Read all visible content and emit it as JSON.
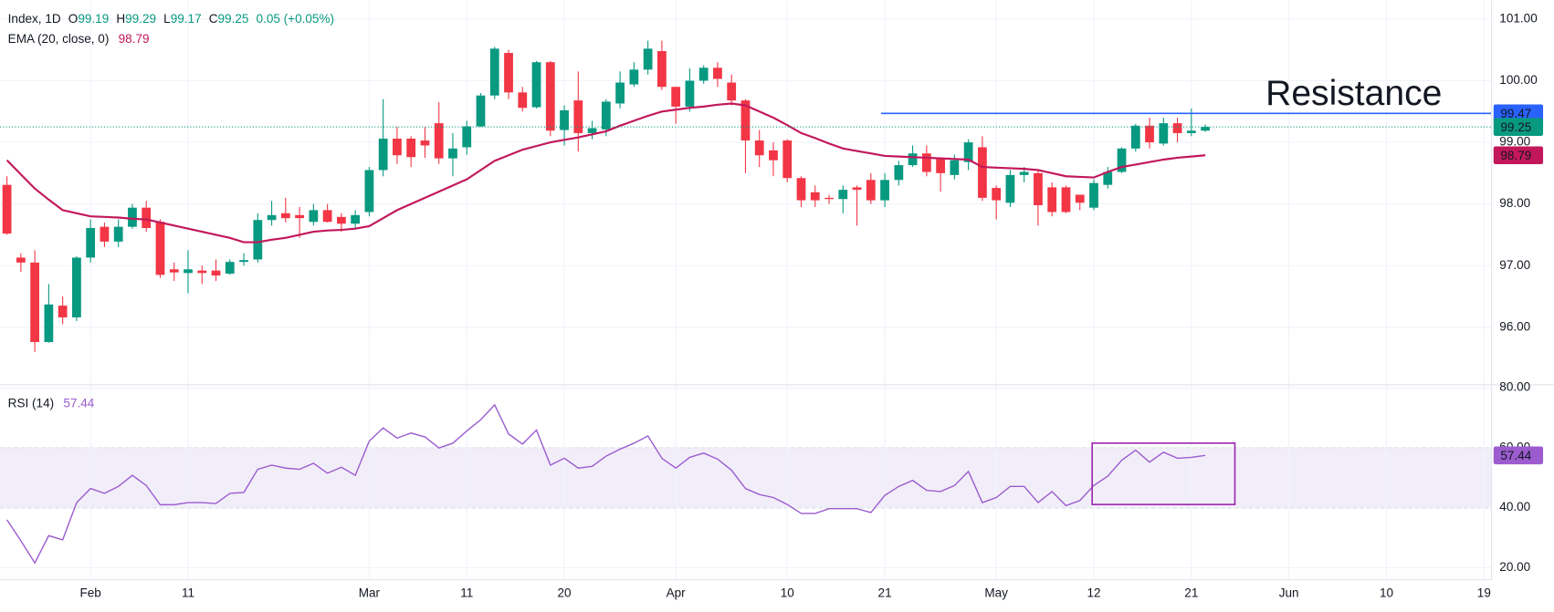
{
  "chart_data": [
    {
      "type": "candlestick",
      "title": "Index, 1D",
      "ohlc_prefixes": [
        "O",
        "H",
        "L",
        "C"
      ],
      "change_label": "0.05 (+0.05%)",
      "up_color": "#089981",
      "down_color": "#f23645",
      "ylim": [
        95.1,
        101.3
      ],
      "yticks": [
        {
          "value": 96,
          "label": "96.00"
        },
        {
          "value": 97,
          "label": "97.00"
        },
        {
          "value": 98,
          "label": "98.00"
        },
        {
          "value": 99,
          "label": "99.00"
        },
        {
          "value": 100,
          "label": "100.00"
        },
        {
          "value": 101,
          "label": "101.00"
        }
      ],
      "open": [
        98.31,
        97.13,
        97.05,
        95.76,
        96.35,
        96.16,
        97.13,
        97.63,
        97.39,
        97.63,
        97.94,
        97.71,
        96.94,
        96.88,
        96.92,
        96.92,
        96.87,
        97.06,
        97.1,
        97.74,
        97.85,
        97.82,
        97.71,
        97.9,
        97.79,
        97.68,
        97.87,
        98.55,
        99.06,
        99.06,
        99.03,
        99.31,
        98.74,
        98.92,
        99.26,
        99.76,
        100.45,
        99.81,
        99.57,
        100.3,
        99.2,
        99.68,
        99.15,
        99.21,
        99.63,
        99.94,
        100.18,
        100.48,
        99.9,
        99.58,
        100.0,
        100.21,
        99.97,
        99.68,
        99.03,
        98.87,
        99.03,
        98.42,
        98.19,
        98.1,
        98.08,
        98.27,
        98.39,
        98.06,
        98.39,
        98.63,
        98.82,
        98.74,
        98.47,
        98.68,
        98.92,
        98.26,
        98.02,
        98.47,
        98.5,
        98.27,
        98.27,
        98.15,
        97.94,
        98.31,
        98.52,
        98.9,
        99.27,
        98.98,
        99.31,
        99.15,
        99.19,
        null,
        null,
        null,
        null,
        null,
        null,
        null,
        null,
        null,
        null,
        null,
        null,
        null,
        null,
        null,
        null,
        null,
        null,
        null,
        null
      ],
      "high": [
        98.45,
        97.2,
        97.25,
        96.7,
        96.5,
        97.15,
        97.75,
        97.7,
        97.75,
        98.0,
        98.05,
        97.75,
        97.05,
        97.25,
        97.0,
        97.1,
        97.1,
        97.2,
        97.85,
        98.05,
        98.1,
        97.95,
        98.0,
        98.0,
        97.85,
        97.9,
        98.6,
        99.7,
        99.25,
        99.1,
        99.25,
        99.65,
        99.15,
        99.35,
        99.8,
        100.55,
        100.5,
        99.9,
        100.32,
        100.32,
        99.6,
        100.15,
        99.35,
        99.7,
        100.15,
        100.3,
        100.65,
        100.65,
        99.9,
        100.2,
        100.25,
        100.3,
        100.1,
        99.7,
        99.2,
        99.0,
        99.05,
        98.45,
        98.3,
        98.15,
        98.3,
        98.3,
        98.5,
        98.5,
        98.7,
        98.95,
        98.95,
        98.75,
        98.8,
        99.05,
        99.1,
        98.3,
        98.55,
        98.6,
        98.55,
        98.35,
        98.3,
        98.15,
        98.4,
        98.6,
        98.92,
        99.3,
        99.4,
        99.4,
        99.4,
        99.55,
        99.29,
        null,
        null,
        null,
        null,
        null,
        null,
        null,
        null,
        null,
        null,
        null,
        null,
        null,
        null,
        null,
        null,
        null,
        null,
        null,
        null
      ],
      "low": [
        97.5,
        96.9,
        95.6,
        95.75,
        96.05,
        96.1,
        97.05,
        97.3,
        97.3,
        97.6,
        97.55,
        96.8,
        96.75,
        96.55,
        96.7,
        96.75,
        96.85,
        97.0,
        97.05,
        97.65,
        97.7,
        97.45,
        97.65,
        97.7,
        97.55,
        97.6,
        97.8,
        98.45,
        98.65,
        98.6,
        98.75,
        98.65,
        98.45,
        98.8,
        99.25,
        99.7,
        99.7,
        99.5,
        99.55,
        99.1,
        98.95,
        98.85,
        99.05,
        99.1,
        99.55,
        99.9,
        100.1,
        99.85,
        99.3,
        99.5,
        99.95,
        99.9,
        99.6,
        98.5,
        98.6,
        98.45,
        98.35,
        97.95,
        97.95,
        98.0,
        97.85,
        97.65,
        98.0,
        97.95,
        98.3,
        98.6,
        98.45,
        98.2,
        98.4,
        98.55,
        98.05,
        97.75,
        97.95,
        98.35,
        97.65,
        97.8,
        97.85,
        97.9,
        97.9,
        98.25,
        98.5,
        98.85,
        98.9,
        98.95,
        99.0,
        99.1,
        99.17,
        null,
        null,
        null,
        null,
        null,
        null,
        null,
        null,
        null,
        null,
        null,
        null,
        null,
        null,
        null,
        null,
        null,
        null,
        null,
        null
      ],
      "close": [
        97.52,
        97.05,
        95.76,
        96.37,
        96.16,
        97.13,
        97.61,
        97.39,
        97.63,
        97.94,
        97.61,
        96.85,
        96.89,
        96.94,
        96.88,
        96.84,
        97.06,
        97.09,
        97.74,
        97.82,
        97.77,
        97.77,
        97.9,
        97.71,
        97.68,
        97.82,
        98.55,
        99.06,
        98.79,
        98.76,
        98.95,
        98.74,
        98.9,
        99.26,
        99.76,
        100.52,
        99.81,
        99.56,
        100.3,
        99.19,
        99.52,
        99.15,
        99.23,
        99.66,
        99.97,
        100.18,
        100.52,
        99.9,
        99.58,
        100.0,
        100.21,
        100.03,
        99.68,
        99.03,
        98.79,
        98.71,
        98.42,
        98.06,
        98.06,
        98.08,
        98.23,
        98.23,
        98.06,
        98.39,
        98.63,
        98.82,
        98.52,
        98.5,
        98.71,
        99.0,
        98.1,
        98.06,
        98.47,
        98.52,
        97.98,
        97.87,
        97.87,
        98.02,
        98.34,
        98.52,
        98.9,
        99.27,
        99.0,
        99.31,
        99.15,
        99.19,
        99.25,
        null,
        null,
        null,
        null,
        null,
        null,
        null,
        null,
        null,
        null,
        null,
        null,
        null,
        null,
        null,
        null,
        null,
        null,
        null,
        null
      ],
      "overlays": [
        {
          "name": "EMA (20, close, 0)",
          "color": "#c2185b",
          "values": [
            98.71,
            98.48,
            98.25,
            98.07,
            97.9,
            97.85,
            97.8,
            97.79,
            97.78,
            97.76,
            97.75,
            97.7,
            97.65,
            97.6,
            97.55,
            97.5,
            97.45,
            97.38,
            97.38,
            97.42,
            97.45,
            97.5,
            97.55,
            97.57,
            97.58,
            97.6,
            97.64,
            97.77,
            97.9,
            98.0,
            98.1,
            98.2,
            98.3,
            98.4,
            98.55,
            98.7,
            98.79,
            98.88,
            98.94,
            99.0,
            99.04,
            99.08,
            99.13,
            99.18,
            99.27,
            99.35,
            99.43,
            99.5,
            99.53,
            99.56,
            99.58,
            99.61,
            99.63,
            99.6,
            99.5,
            99.4,
            99.28,
            99.15,
            99.07,
            98.98,
            98.9,
            98.86,
            98.82,
            98.78,
            98.77,
            98.76,
            98.75,
            98.74,
            98.73,
            98.72,
            98.6,
            98.59,
            98.58,
            98.57,
            98.55,
            98.5,
            98.45,
            98.44,
            98.43,
            98.52,
            98.6,
            98.64,
            98.68,
            98.72,
            98.75,
            98.77,
            98.79,
            null,
            null,
            null,
            null,
            null,
            null,
            null,
            null,
            null,
            null,
            null,
            null,
            null,
            null,
            null,
            null,
            null,
            null,
            null,
            null
          ]
        }
      ],
      "annotations": [
        {
          "text": "Resistance",
          "value": 99.47,
          "color": "#2962ff"
        }
      ]
    },
    {
      "type": "line",
      "categories": [
        null,
        null,
        null,
        null,
        null,
        null,
        "Feb",
        null,
        null,
        null,
        null,
        null,
        null,
        "11",
        null,
        null,
        null,
        null,
        null,
        null,
        null,
        null,
        null,
        null,
        null,
        null,
        "Mar",
        null,
        null,
        null,
        null,
        null,
        null,
        "11",
        null,
        null,
        null,
        null,
        null,
        null,
        "20",
        null,
        null,
        null,
        null,
        null,
        null,
        null,
        "Apr",
        null,
        null,
        null,
        null,
        null,
        null,
        null,
        "10",
        null,
        null,
        null,
        null,
        null,
        null,
        "21",
        null,
        null,
        null,
        null,
        null,
        null,
        null,
        "May",
        null,
        null,
        null,
        null,
        null,
        null,
        "12",
        null,
        null,
        null,
        null,
        null,
        null,
        "21",
        null,
        null,
        null,
        null,
        null,
        null,
        "Jun",
        null,
        null,
        null,
        null,
        null,
        null,
        "10",
        null,
        null,
        null,
        null,
        null,
        null,
        "19"
      ],
      "ylim": [
        16,
        81
      ],
      "yticks": [
        {
          "value": 20,
          "label": "20.00"
        },
        {
          "value": 40,
          "label": "40.00"
        },
        {
          "value": 60,
          "label": "60.00"
        },
        {
          "value": 80,
          "label": "80.00"
        }
      ],
      "band": [
        40,
        60
      ],
      "series": [
        {
          "name": "RSI (14)",
          "color": "#9c5ccf",
          "values": [
            36,
            29,
            21.6,
            30.7,
            29.3,
            41.7,
            46.4,
            44.8,
            47.1,
            50.8,
            47.4,
            41,
            41,
            41.7,
            41.7,
            41.4,
            44.8,
            45.1,
            52.8,
            54.2,
            53.2,
            52.8,
            54.8,
            51.5,
            53.5,
            50.8,
            62.2,
            66.6,
            63.2,
            64.9,
            63.6,
            59.9,
            61.5,
            65.6,
            69.3,
            74.3,
            64.6,
            61.2,
            65.9,
            54.2,
            56.5,
            53.2,
            53.8,
            57.2,
            59.5,
            61.5,
            63.9,
            56.5,
            53.2,
            56.8,
            58.2,
            56.2,
            52.5,
            46.4,
            44.4,
            43.4,
            41.1,
            38.1,
            38.1,
            39.7,
            39.7,
            39.7,
            38.4,
            44.1,
            47.1,
            49.1,
            45.8,
            45.4,
            47.4,
            52.1,
            41.7,
            43.4,
            47.1,
            47.1,
            41.7,
            45.4,
            40.7,
            42.4,
            47.4,
            50.5,
            55.8,
            59.2,
            55.2,
            58.5,
            56.5,
            56.8,
            57.44,
            null,
            null,
            null,
            null,
            null,
            null,
            null,
            null,
            null,
            null,
            null,
            null,
            null,
            null,
            null,
            null,
            null,
            null,
            null,
            null
          ]
        }
      ]
    }
  ]
}
